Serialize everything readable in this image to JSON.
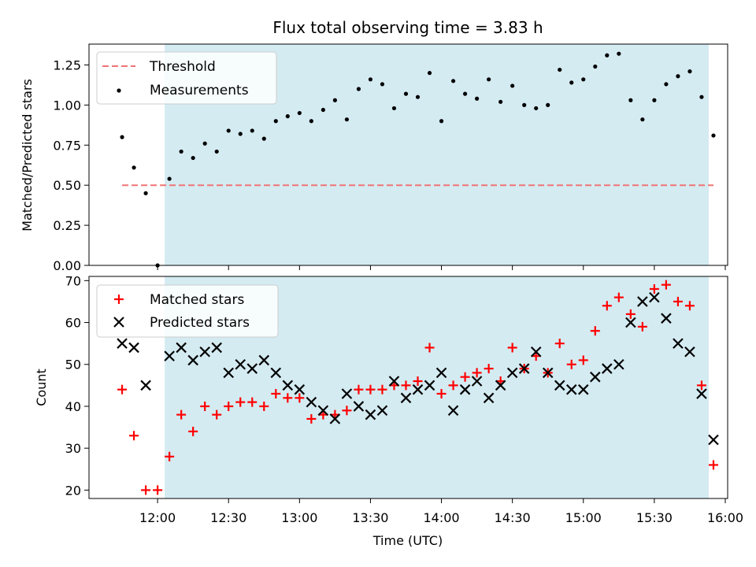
{
  "chart_data": [
    {
      "type": "scatter",
      "title": "Flux total observing time = 3.83 h",
      "xlabel": "",
      "ylabel": "Matched/Predicted stars",
      "ylim": [
        0,
        1.38
      ],
      "yticks": [
        "0.00",
        "0.25",
        "0.50",
        "0.75",
        "1.00",
        "1.25"
      ],
      "xlim": [
        "11:31",
        "16:01"
      ],
      "shaded_region": [
        "12:03",
        "15:53"
      ],
      "shade_color": "#d4ebf2",
      "legend": {
        "placement": "top-left",
        "entries": [
          "Threshold",
          "Measurements"
        ]
      },
      "threshold": {
        "name": "Threshold",
        "value": 0.5,
        "x": [
          "11:45",
          "15:55"
        ],
        "color": "#f07474"
      },
      "series": [
        {
          "name": "Measurements",
          "color": "#000000",
          "x": [
            "11:45",
            "11:50",
            "11:55",
            "12:00",
            "12:05",
            "12:10",
            "12:15",
            "12:20",
            "12:25",
            "12:30",
            "12:35",
            "12:40",
            "12:45",
            "12:50",
            "12:55",
            "13:00",
            "13:05",
            "13:10",
            "13:15",
            "13:20",
            "13:25",
            "13:30",
            "13:35",
            "13:40",
            "13:45",
            "13:50",
            "13:55",
            "14:00",
            "14:05",
            "14:10",
            "14:15",
            "14:20",
            "14:25",
            "14:30",
            "14:35",
            "14:40",
            "14:45",
            "14:50",
            "14:55",
            "15:00",
            "15:05",
            "15:10",
            "15:15",
            "15:20",
            "15:25",
            "15:30",
            "15:35",
            "15:40",
            "15:45",
            "15:50",
            "15:55"
          ],
          "y": [
            0.8,
            0.61,
            0.45,
            0.0,
            0.54,
            0.71,
            0.67,
            0.76,
            0.71,
            0.84,
            0.82,
            0.84,
            0.79,
            0.9,
            0.93,
            0.95,
            0.9,
            0.97,
            1.03,
            0.91,
            1.1,
            1.16,
            1.13,
            0.98,
            1.07,
            1.05,
            1.2,
            0.9,
            1.15,
            1.07,
            1.04,
            1.16,
            1.02,
            1.12,
            1.0,
            0.98,
            1.0,
            1.22,
            1.14,
            1.16,
            1.24,
            1.31,
            1.32,
            1.03,
            0.91,
            1.03,
            1.13,
            1.18,
            1.21,
            1.05,
            0.81
          ]
        }
      ]
    },
    {
      "type": "scatter",
      "title": "",
      "xlabel": "Time (UTC)",
      "ylabel": "Count",
      "ylim": [
        18,
        71
      ],
      "yticks": [
        "20",
        "30",
        "40",
        "50",
        "60",
        "70"
      ],
      "xlim": [
        "11:31",
        "16:01"
      ],
      "xticks": [
        "12:00",
        "12:30",
        "13:00",
        "13:30",
        "14:00",
        "14:30",
        "15:00",
        "15:30",
        "16:00"
      ],
      "shaded_region": [
        "12:03",
        "15:53"
      ],
      "legend": {
        "placement": "top-left",
        "entries": [
          "Matched stars",
          "Predicted stars"
        ]
      },
      "series": [
        {
          "name": "Matched stars",
          "marker": "plus",
          "color": "#ff0000",
          "x": [
            "11:45",
            "11:50",
            "11:55",
            "12:00",
            "12:05",
            "12:10",
            "12:15",
            "12:20",
            "12:25",
            "12:30",
            "12:35",
            "12:40",
            "12:45",
            "12:50",
            "12:55",
            "13:00",
            "13:05",
            "13:10",
            "13:15",
            "13:20",
            "13:25",
            "13:30",
            "13:35",
            "13:40",
            "13:45",
            "13:50",
            "13:55",
            "14:00",
            "14:05",
            "14:10",
            "14:15",
            "14:20",
            "14:25",
            "14:30",
            "14:35",
            "14:40",
            "14:45",
            "14:50",
            "14:55",
            "15:00",
            "15:05",
            "15:10",
            "15:15",
            "15:20",
            "15:25",
            "15:30",
            "15:35",
            "15:40",
            "15:45",
            "15:50",
            "15:55"
          ],
          "y": [
            44,
            33,
            20,
            20,
            28,
            38,
            34,
            40,
            38,
            40,
            41,
            41,
            40,
            43,
            42,
            42,
            37,
            38,
            38,
            39,
            44,
            44,
            44,
            45,
            45,
            46,
            54,
            43,
            45,
            47,
            48,
            49,
            46,
            54,
            49,
            52,
            48,
            55,
            50,
            51,
            58,
            64,
            66,
            62,
            59,
            68,
            69,
            65,
            64,
            45,
            26
          ]
        },
        {
          "name": "Predicted stars",
          "marker": "x",
          "color": "#000000",
          "x": [
            "11:45",
            "11:50",
            "11:55",
            "12:05",
            "12:10",
            "12:15",
            "12:20",
            "12:25",
            "12:30",
            "12:35",
            "12:40",
            "12:45",
            "12:50",
            "12:55",
            "13:00",
            "13:05",
            "13:10",
            "13:15",
            "13:20",
            "13:25",
            "13:30",
            "13:35",
            "13:40",
            "13:45",
            "13:50",
            "13:55",
            "14:00",
            "14:05",
            "14:10",
            "14:15",
            "14:20",
            "14:25",
            "14:30",
            "14:35",
            "14:40",
            "14:45",
            "14:50",
            "14:55",
            "15:00",
            "15:05",
            "15:10",
            "15:15",
            "15:20",
            "15:25",
            "15:30",
            "15:35",
            "15:40",
            "15:45",
            "15:50",
            "15:55"
          ],
          "y": [
            55,
            54,
            45,
            52,
            54,
            51,
            53,
            54,
            48,
            50,
            49,
            51,
            48,
            45,
            44,
            41,
            39,
            37,
            43,
            40,
            38,
            39,
            46,
            42,
            44,
            45,
            48,
            39,
            44,
            46,
            42,
            45,
            48,
            49,
            53,
            48,
            45,
            44,
            44,
            47,
            49,
            50,
            60,
            65,
            66,
            61,
            55,
            53,
            43,
            32
          ]
        }
      ]
    }
  ]
}
